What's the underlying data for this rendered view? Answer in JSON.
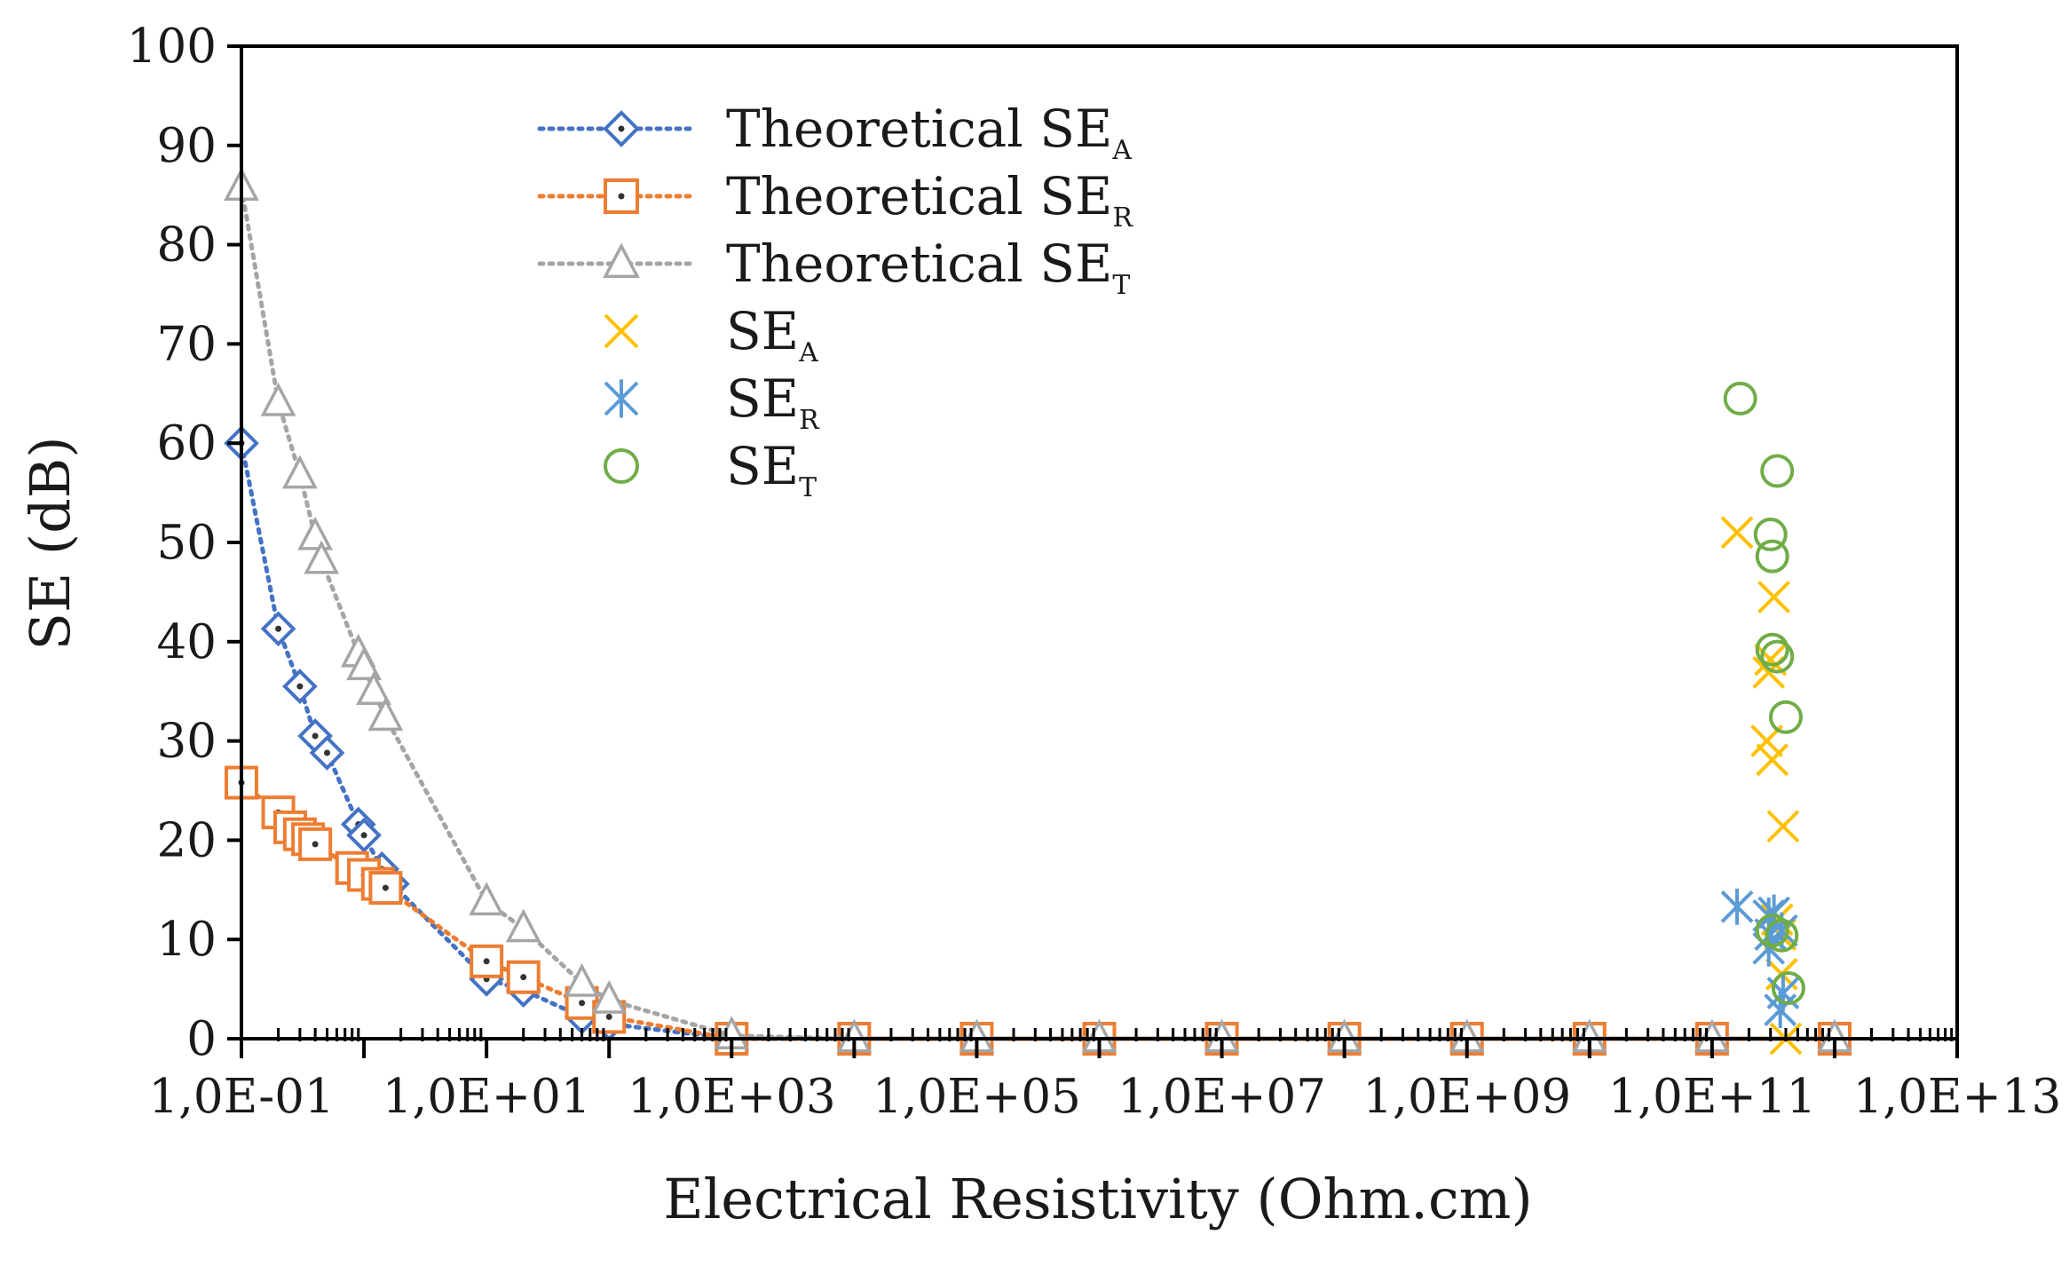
{
  "chart_data": {
    "type": "scatter",
    "xlabel": "Electrical Resistivity (Ohm.cm)",
    "ylabel": "SE (dB)",
    "x_scale": "log",
    "xlim": [
      0.1,
      10000000000000.0
    ],
    "ylim": [
      0,
      100
    ],
    "x_ticks": [
      0.1,
      10,
      1000,
      100000,
      10000000,
      1000000000,
      100000000000,
      10000000000000
    ],
    "x_tick_labels": [
      "1,0E-01",
      "1,0E+01",
      "1,0E+03",
      "1,0E+05",
      "1,0E+07",
      "1,0E+09",
      "1,0E+11",
      "1,0E+13"
    ],
    "y_ticks": [
      0,
      10,
      20,
      30,
      40,
      50,
      60,
      70,
      80,
      90,
      100
    ],
    "y_tick_labels": [
      "0",
      "10",
      "20",
      "30",
      "40",
      "50",
      "60",
      "70",
      "80",
      "90",
      "100"
    ],
    "legend_position": "top-left",
    "grid": false,
    "series": [
      {
        "name_main": "Theoretical SE",
        "name_sub": "A",
        "color": "#4472C4",
        "marker": "diamond",
        "line": "dotted",
        "points": [
          [
            0.1,
            60
          ],
          [
            0.2,
            41.3
          ],
          [
            0.3,
            35.5
          ],
          [
            0.4,
            30.5
          ],
          [
            0.5,
            28.8
          ],
          [
            0.9,
            21.6
          ],
          [
            1.0,
            20.5
          ],
          [
            1.4,
            17.1
          ],
          [
            1.7,
            15.6
          ],
          [
            10,
            6.0
          ],
          [
            20,
            4.9
          ],
          [
            60,
            2.2
          ],
          [
            100,
            1.5
          ],
          [
            1000,
            0
          ],
          [
            10000,
            0
          ],
          [
            100000,
            0
          ],
          [
            1000000,
            0
          ],
          [
            10000000,
            0
          ],
          [
            100000000,
            0
          ],
          [
            1000000000,
            0
          ],
          [
            10000000000,
            0
          ],
          [
            100000000000,
            0
          ],
          [
            1000000000000,
            0
          ]
        ]
      },
      {
        "name_main": "Theoretical SE",
        "name_sub": "R",
        "color": "#ED7D31",
        "marker": "square",
        "line": "dotted",
        "points": [
          [
            0.1,
            25.8
          ],
          [
            0.2,
            22.8
          ],
          [
            0.25,
            21.3
          ],
          [
            0.3,
            20.6
          ],
          [
            0.35,
            20.1
          ],
          [
            0.4,
            19.6
          ],
          [
            0.8,
            17.2
          ],
          [
            1.0,
            16.5
          ],
          [
            1.3,
            15.6
          ],
          [
            1.5,
            15.2
          ],
          [
            10,
            7.8
          ],
          [
            20,
            6.2
          ],
          [
            60,
            3.6
          ],
          [
            100,
            2.2
          ],
          [
            1000,
            0
          ],
          [
            10000,
            0
          ],
          [
            100000,
            0
          ],
          [
            1000000,
            0
          ],
          [
            10000000,
            0
          ],
          [
            100000000,
            0
          ],
          [
            1000000000,
            0
          ],
          [
            10000000000,
            0
          ],
          [
            100000000000,
            0
          ],
          [
            1000000000000,
            0
          ]
        ]
      },
      {
        "name_main": "Theoretical SE",
        "name_sub": "T",
        "color": "#A5A5A5",
        "marker": "triangle",
        "line": "dotted",
        "points": [
          [
            0.1,
            85.8
          ],
          [
            0.2,
            64.1
          ],
          [
            0.3,
            56.8
          ],
          [
            0.4,
            50.6
          ],
          [
            0.45,
            48.2
          ],
          [
            0.9,
            38.8
          ],
          [
            1.0,
            37.5
          ],
          [
            1.2,
            35.0
          ],
          [
            1.5,
            32.4
          ],
          [
            10,
            13.8
          ],
          [
            20,
            11.1
          ],
          [
            60,
            5.6
          ],
          [
            100,
            3.9
          ],
          [
            1000,
            0.3
          ],
          [
            10000,
            0
          ],
          [
            100000,
            0
          ],
          [
            1000000,
            0
          ],
          [
            10000000,
            0
          ],
          [
            100000000,
            0
          ],
          [
            1000000000,
            0
          ],
          [
            10000000000,
            0
          ],
          [
            100000000000,
            0
          ],
          [
            1000000000000,
            0
          ]
        ]
      },
      {
        "name_main": "SE",
        "name_sub": "A",
        "color": "#FFC000",
        "marker": "x",
        "line": "none",
        "points": [
          [
            160000000000,
            51
          ],
          [
            320000000000,
            44.5
          ],
          [
            300000000000,
            38.2
          ],
          [
            290000000000,
            36.9
          ],
          [
            280000000000,
            30.0
          ],
          [
            310000000000,
            28.1
          ],
          [
            380000000000,
            21.4
          ],
          [
            340000000000,
            12.0
          ],
          [
            360000000000,
            10.5
          ],
          [
            370000000000,
            6.5
          ],
          [
            400000000000,
            0
          ]
        ]
      },
      {
        "name_main": "SE",
        "name_sub": "R",
        "color": "#5B9BD5",
        "marker": "asterisk",
        "line": "none",
        "points": [
          [
            160000000000,
            13.3
          ],
          [
            290000000000,
            12.4
          ],
          [
            320000000000,
            12.7
          ],
          [
            300000000000,
            10.5
          ],
          [
            290000000000,
            9.1
          ],
          [
            370000000000,
            10.9
          ],
          [
            380000000000,
            4.6
          ],
          [
            360000000000,
            2.9
          ]
        ]
      },
      {
        "name_main": "SE",
        "name_sub": "T",
        "color": "#70AD47",
        "marker": "circle",
        "line": "none",
        "points": [
          [
            170000000000,
            64.5
          ],
          [
            340000000000,
            57.2
          ],
          [
            300000000000,
            50.8
          ],
          [
            310000000000,
            48.6
          ],
          [
            310000000000,
            39.2
          ],
          [
            340000000000,
            38.5
          ],
          [
            400000000000,
            32.4
          ],
          [
            310000000000,
            10.9
          ],
          [
            370000000000,
            10.4
          ],
          [
            420000000000,
            5.1
          ]
        ]
      }
    ]
  }
}
